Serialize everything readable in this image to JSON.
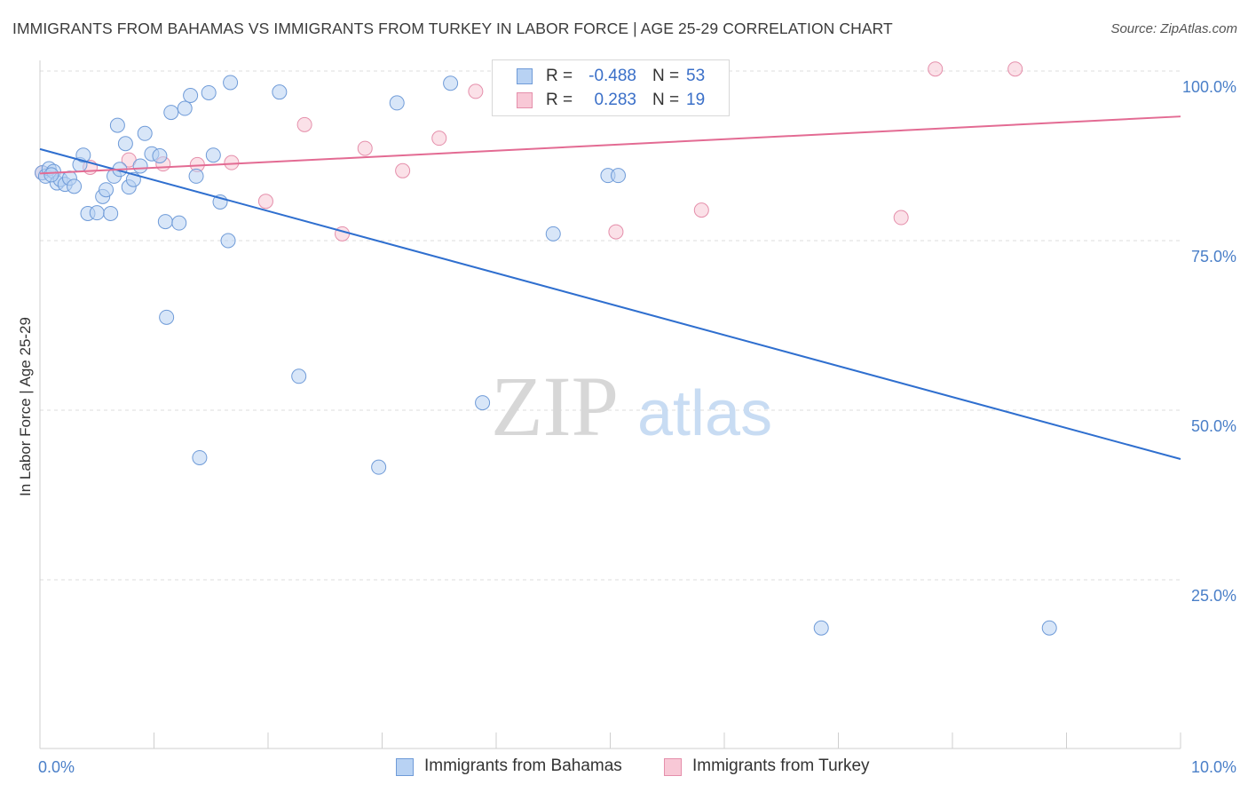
{
  "title": "IMMIGRANTS FROM BAHAMAS VS IMMIGRANTS FROM TURKEY IN LABOR FORCE | AGE 25-29 CORRELATION CHART",
  "source": "Source: ZipAtlas.com",
  "watermark": {
    "zip": "ZIP",
    "atlas": "atlas"
  },
  "legend": {
    "rows": [
      {
        "r_label": "R =",
        "r_value": "-0.488",
        "n_label": "N =",
        "n_value": "53"
      },
      {
        "r_label": "R =",
        "r_value": "0.283",
        "n_label": "N =",
        "n_value": "19"
      }
    ]
  },
  "colors": {
    "bahamas_fill": "#b8d2f3",
    "bahamas_stroke": "#6f9bd8",
    "bahamas_line": "#2f6fcf",
    "turkey_fill": "#f8c8d6",
    "turkey_stroke": "#e58fab",
    "turkey_line": "#e36b93",
    "tick_text": "#4a7fc8",
    "grid": "#dcdcdc"
  },
  "chart_data": {
    "type": "scatter",
    "xlabel": "",
    "ylabel": "In Labor Force | Age 25-29",
    "xlim": [
      0,
      10
    ],
    "ylim": [
      0,
      102
    ],
    "x_tick_labels": [
      {
        "value": 0,
        "label": "0.0%"
      },
      {
        "value": 10,
        "label": "10.0%"
      }
    ],
    "y_tick_labels": [
      {
        "value": 25,
        "label": "25.0%"
      },
      {
        "value": 50,
        "label": "50.0%"
      },
      {
        "value": 75,
        "label": "75.0%"
      },
      {
        "value": 100,
        "label": "100.0%"
      }
    ],
    "grid": "horizontal dashed",
    "legend_position": "bottom",
    "series": [
      {
        "name": "Immigrants from Bahamas",
        "color": "#6f9bd8",
        "trend": {
          "x": [
            0,
            10
          ],
          "y": [
            88.5,
            42.8
          ]
        },
        "points": [
          [
            0.02,
            85.0
          ],
          [
            0.05,
            84.5
          ],
          [
            0.08,
            85.6
          ],
          [
            0.12,
            85.2
          ],
          [
            0.15,
            83.5
          ],
          [
            0.18,
            84.0
          ],
          [
            0.22,
            83.3
          ],
          [
            0.26,
            84.2
          ],
          [
            0.3,
            83.0
          ],
          [
            0.35,
            86.2
          ],
          [
            0.38,
            87.6
          ],
          [
            0.42,
            79.0
          ],
          [
            0.5,
            79.1
          ],
          [
            0.55,
            81.5
          ],
          [
            0.58,
            82.5
          ],
          [
            0.62,
            79.0
          ],
          [
            0.65,
            84.5
          ],
          [
            0.68,
            92.0
          ],
          [
            0.7,
            85.5
          ],
          [
            0.75,
            89.3
          ],
          [
            0.78,
            82.9
          ],
          [
            0.82,
            84.0
          ],
          [
            0.88,
            86.0
          ],
          [
            0.92,
            90.8
          ],
          [
            0.98,
            87.8
          ],
          [
            1.05,
            87.5
          ],
          [
            1.1,
            77.8
          ],
          [
            1.11,
            63.7
          ],
          [
            1.15,
            93.9
          ],
          [
            1.22,
            77.6
          ],
          [
            1.27,
            94.5
          ],
          [
            1.32,
            96.4
          ],
          [
            1.37,
            84.5
          ],
          [
            1.4,
            43.0
          ],
          [
            1.48,
            96.8
          ],
          [
            1.52,
            87.6
          ],
          [
            1.58,
            80.7
          ],
          [
            1.67,
            98.3
          ],
          [
            2.1,
            96.9
          ],
          [
            2.27,
            55.0
          ],
          [
            2.97,
            41.6
          ],
          [
            3.13,
            95.3
          ],
          [
            3.6,
            98.2
          ],
          [
            3.88,
            51.1
          ],
          [
            4.45,
            98.0
          ],
          [
            4.5,
            76.0
          ],
          [
            4.98,
            84.6
          ],
          [
            5.07,
            84.6
          ],
          [
            5.28,
            100.0
          ],
          [
            6.85,
            17.9
          ],
          [
            8.85,
            17.9
          ],
          [
            1.65,
            75.0
          ],
          [
            0.1,
            84.7
          ]
        ]
      },
      {
        "name": "Immigrants from Turkey",
        "color": "#e58fab",
        "trend": {
          "x": [
            0,
            10
          ],
          "y": [
            84.9,
            93.3
          ]
        },
        "points": [
          [
            0.02,
            85.0
          ],
          [
            0.44,
            85.8
          ],
          [
            0.78,
            86.9
          ],
          [
            1.08,
            86.3
          ],
          [
            1.38,
            86.2
          ],
          [
            1.68,
            86.5
          ],
          [
            1.98,
            80.8
          ],
          [
            2.32,
            92.1
          ],
          [
            2.65,
            76.0
          ],
          [
            2.85,
            88.6
          ],
          [
            3.18,
            85.3
          ],
          [
            3.5,
            90.1
          ],
          [
            3.82,
            97.0
          ],
          [
            4.45,
            100.0
          ],
          [
            5.05,
            76.3
          ],
          [
            5.8,
            79.5
          ],
          [
            7.55,
            78.4
          ],
          [
            7.85,
            100.3
          ],
          [
            8.55,
            100.3
          ]
        ]
      }
    ]
  }
}
